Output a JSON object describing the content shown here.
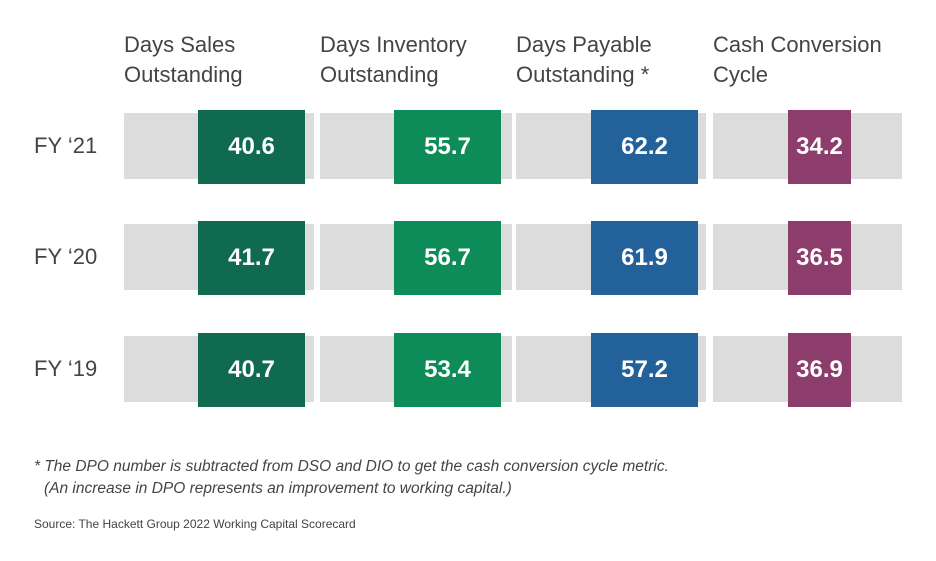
{
  "chart_data": {
    "type": "table",
    "columns": [
      {
        "line1": "Days Sales",
        "line2": "Outstanding",
        "color": "#0f6a4f"
      },
      {
        "line1": "Days Inventory",
        "line2": "Outstanding",
        "color": "#0e8c58"
      },
      {
        "line1": "Days Payable",
        "line2": "Outstanding *",
        "color": "#23619a"
      },
      {
        "line1": "Cash Conversion",
        "line2": "Cycle",
        "color": "#8c3d6c"
      }
    ],
    "rows": [
      {
        "label": "FY ‘21",
        "values": [
          "40.6",
          "55.7",
          "62.2",
          "34.2"
        ]
      },
      {
        "label": "FY ‘20",
        "values": [
          "41.7",
          "56.7",
          "61.9",
          "36.5"
        ]
      },
      {
        "label": "FY ‘19",
        "values": [
          "40.7",
          "53.4",
          "57.2",
          "36.9"
        ]
      }
    ]
  },
  "footnote": {
    "line1": "* The DPO number is subtracted from DSO and DIO to get the cash conversion cycle metric.",
    "line2": "(An increase in DPO represents an improvement to working capital.)"
  },
  "source": "Source: The Hackett Group 2022 Working Capital Scorecard"
}
